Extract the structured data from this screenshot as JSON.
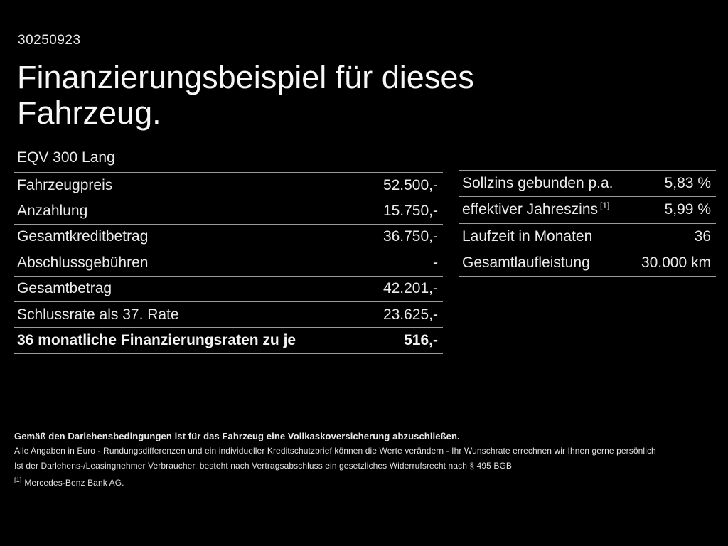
{
  "page": {
    "doc_number": "30250923",
    "title": "Finanzierungsbeispiel für dieses Fahrzeug.",
    "model": "EQV 300 Lang"
  },
  "left_table": {
    "rows": [
      {
        "label": "Fahrzeugpreis",
        "value": "52.500,-"
      },
      {
        "label": "Anzahlung",
        "value": "15.750,-"
      },
      {
        "label": "Gesamtkreditbetrag",
        "value": "36.750,-"
      },
      {
        "label": "Abschlussgebühren",
        "value": "-"
      },
      {
        "label": "Gesamtbetrag",
        "value": "42.201,-"
      },
      {
        "label": "Schlussrate als 37. Rate",
        "value": "23.625,-"
      },
      {
        "label": "36 monatliche Finanzierungsraten zu je",
        "value": "516,-"
      }
    ]
  },
  "right_table": {
    "rows": [
      {
        "label": "Sollzins gebunden p.a.",
        "value": "5,83 %"
      },
      {
        "label": "effektiver Jahreszins",
        "label_sup": "[1]",
        "value": "5,99 %"
      },
      {
        "label": "Laufzeit in Monaten",
        "value": "36"
      },
      {
        "label": "Gesamtlaufleistung",
        "value": "30.000 km"
      }
    ]
  },
  "footnotes": {
    "insurance": "Gemäß den Darlehensbedingungen ist für das Fahrzeug eine Vollkaskoversicherung abzuschließen.",
    "rounding": "Alle Angaben in Euro - Rundungsdifferenzen und ein individueller Kreditschutzbrief können die Werte verändern - Ihr Wunschrate errechnen wir Ihnen gerne persönlich",
    "withdrawal": "Ist der Darlehens-/Leasingnehmer Verbraucher, besteht nach Vertragsabschluss ein gesetzliches Widerrufsrecht nach § 495 BGB",
    "bank_ref": "[1]",
    "bank": "Mercedes-Benz Bank AG."
  },
  "colors": {
    "background": "#000000",
    "text": "#ececec",
    "divider": "#9c9c9c"
  }
}
